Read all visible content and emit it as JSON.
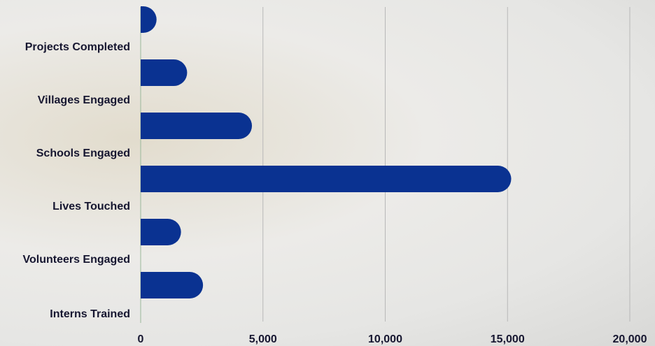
{
  "chart_data": {
    "type": "bar",
    "orientation": "horizontal",
    "categories": [
      "Projects Completed",
      "Villages Engaged",
      "Schools Engaged",
      "Lives Touched",
      "Volunteers Engaged",
      "Interns Trained"
    ],
    "values": [
      650,
      1900,
      4550,
      15150,
      1650,
      2550
    ],
    "color": "#0a3291",
    "xlim": [
      0,
      20000
    ],
    "xticks": [
      0,
      {
        "value": 5000,
        "label": "5,000"
      },
      {
        "value": 10000,
        "label": "10,000"
      },
      {
        "value": 15000,
        "label": "15,000"
      },
      {
        "value": 20000,
        "label": "20,000"
      }
    ],
    "grid": true
  }
}
